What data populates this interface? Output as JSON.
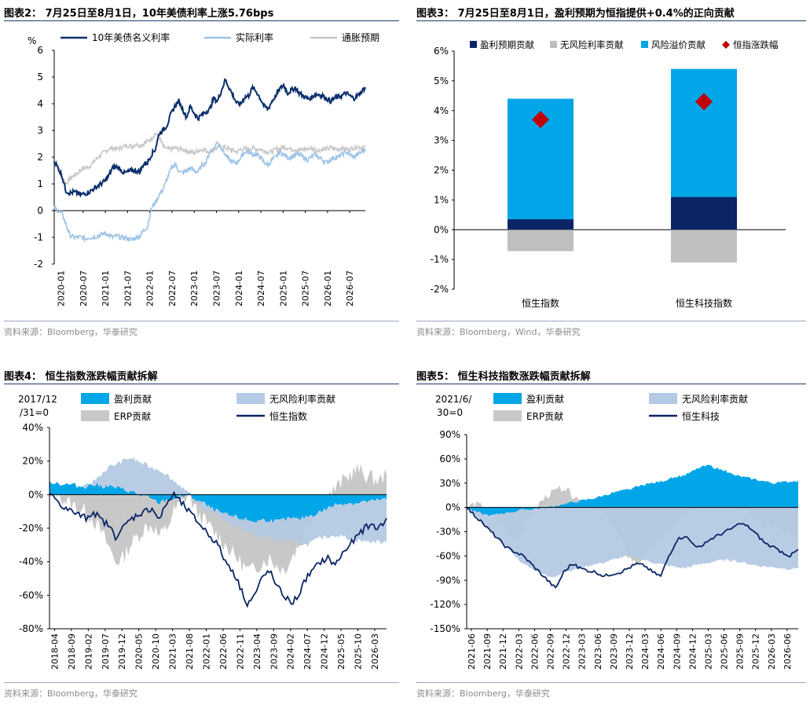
{
  "panels": [
    {
      "id": "p2",
      "title": "图表2： 7月25日至8月1日，10年美债利率上涨5.76bps",
      "source": "资料来源：Bloomberg，华泰研究"
    },
    {
      "id": "p3",
      "title": "图表3： 7月25日至8月1日，盈利预期为恒指提供+0.4%的正向贡献",
      "source": "资料来源：Bloomberg，Wind，华泰研究"
    },
    {
      "id": "p4",
      "title": "图表4： 恒生指数涨跌幅贡献拆解",
      "source": "资料来源：Bloomberg，华泰研究"
    },
    {
      "id": "p5",
      "title": "图表5： 恒生科技指数涨跌幅贡献拆解",
      "source": "资料来源：Bloomberg，华泰研究"
    }
  ],
  "chart_data": [
    {
      "type": "line",
      "ylabel": "%",
      "ylim": [
        -2,
        6
      ],
      "yticks": [
        "-2",
        "-1",
        "0",
        "1",
        "2",
        "3",
        "4",
        "5",
        "6"
      ],
      "xticks": [
        "2020-01",
        "2020-07",
        "2021-01",
        "2021-07",
        "2022-01",
        "2022-07",
        "2023-01",
        "2023-07",
        "2024-01",
        "2024-07",
        "2025-01",
        "2025-07",
        "2026-01",
        "2026-07"
      ],
      "colors": {
        "nominal": "#0b2f6b",
        "real": "#9ec3e6",
        "breakeven": "#c8c8c8"
      },
      "series": [
        {
          "name": "10年美债名义利率",
          "key": "nominal",
          "t": [
            0,
            1,
            2,
            3,
            4,
            5,
            6,
            7,
            8,
            9,
            10,
            11,
            12,
            13,
            14,
            15,
            16,
            17,
            18,
            19,
            20,
            21,
            22,
            23,
            24,
            25,
            26,
            27,
            28,
            29,
            30,
            31,
            32,
            33,
            34,
            35,
            36,
            37,
            38,
            39,
            40,
            41,
            42,
            43,
            44,
            45,
            46,
            47,
            48,
            49,
            50,
            51,
            52,
            53,
            54,
            55,
            56,
            57,
            58,
            59,
            60,
            61,
            62,
            63,
            64,
            65,
            66,
            67,
            68,
            69,
            70,
            71,
            72,
            73,
            74,
            75,
            76,
            77,
            78,
            79,
            80
          ],
          "v": [
            1.85,
            1.6,
            1.3,
            0.75,
            0.65,
            0.7,
            0.65,
            0.6,
            0.65,
            0.7,
            0.8,
            0.9,
            1.0,
            1.1,
            1.3,
            1.6,
            1.65,
            1.55,
            1.4,
            1.45,
            1.5,
            1.5,
            1.45,
            1.75,
            1.8,
            2.1,
            2.3,
            2.9,
            3.0,
            3.2,
            3.6,
            3.9,
            4.1,
            3.8,
            3.5,
            3.9,
            3.65,
            3.45,
            3.6,
            3.7,
            3.8,
            4.2,
            4.1,
            4.5,
            4.9,
            4.6,
            4.3,
            4.0,
            4.0,
            4.25,
            4.3,
            4.6,
            4.45,
            4.2,
            3.9,
            3.8,
            4.1,
            4.3,
            4.55,
            4.7,
            4.4,
            4.5,
            4.6,
            4.4,
            4.3,
            4.2,
            4.2,
            4.35,
            4.35,
            4.3,
            4.2,
            4.1,
            4.2,
            4.25,
            4.3,
            4.4,
            4.3,
            4.2,
            4.3,
            4.45,
            4.62
          ]
        },
        {
          "name": "实际利率",
          "key": "real",
          "t": [
            0,
            1,
            2,
            3,
            4,
            5,
            6,
            7,
            8,
            9,
            10,
            11,
            12,
            13,
            14,
            15,
            16,
            17,
            18,
            19,
            20,
            21,
            22,
            23,
            24,
            25,
            26,
            27,
            28,
            29,
            30,
            31,
            32,
            33,
            34,
            35,
            36,
            37,
            38,
            39,
            40,
            41,
            42,
            43,
            44,
            45,
            46,
            47,
            48,
            49,
            50,
            51,
            52,
            53,
            54,
            55,
            56,
            57,
            58,
            59,
            60,
            61,
            62,
            63,
            64,
            65,
            66,
            67,
            68,
            69,
            70,
            71,
            72,
            73,
            74,
            75,
            76,
            77,
            78,
            79,
            80
          ],
          "v": [
            0.1,
            0.0,
            -0.1,
            -0.5,
            -0.9,
            -1.0,
            -1.0,
            -1.0,
            -1.05,
            -1.0,
            -1.0,
            -0.95,
            -0.9,
            -0.85,
            -0.9,
            -1.0,
            -0.95,
            -1.0,
            -1.0,
            -1.05,
            -1.1,
            -1.0,
            -0.95,
            -0.75,
            -0.6,
            0.1,
            0.3,
            0.6,
            0.8,
            1.2,
            1.55,
            1.75,
            1.5,
            1.4,
            1.5,
            1.6,
            1.5,
            1.45,
            1.7,
            1.8,
            2.2,
            2.3,
            2.6,
            2.35,
            2.1,
            1.9,
            1.8,
            1.8,
            2.0,
            2.2,
            2.2,
            2.1,
            2.1,
            2.0,
            1.8,
            1.7,
            1.9,
            2.0,
            2.2,
            2.1,
            2.0,
            2.0,
            2.1,
            2.1,
            2.0,
            1.9,
            2.0,
            2.1,
            2.0,
            1.9,
            1.8,
            1.9,
            2.0,
            2.0,
            2.1,
            2.2,
            2.1,
            2.0,
            2.1,
            2.2,
            2.3
          ]
        },
        {
          "name": "通胀预期",
          "key": "breakeven",
          "t": [
            0,
            1,
            2,
            3,
            4,
            5,
            6,
            7,
            8,
            9,
            10,
            11,
            12,
            13,
            14,
            15,
            16,
            17,
            18,
            19,
            20,
            21,
            22,
            23,
            24,
            25,
            26,
            27,
            28,
            29,
            30,
            31,
            32,
            33,
            34,
            35,
            36,
            37,
            38,
            39,
            40,
            41,
            42,
            43,
            44,
            45,
            46,
            47,
            48,
            49,
            50,
            51,
            52,
            53,
            54,
            55,
            56,
            57,
            58,
            59,
            60,
            61,
            62,
            63,
            64,
            65,
            66,
            67,
            68,
            69,
            70,
            71,
            72,
            73,
            74,
            75,
            76,
            77,
            78,
            79,
            80
          ],
          "v": [
            1.75,
            1.6,
            1.3,
            1.0,
            1.2,
            1.3,
            1.4,
            1.55,
            1.6,
            1.65,
            1.8,
            1.95,
            2.1,
            2.2,
            2.3,
            2.35,
            2.3,
            2.35,
            2.4,
            2.45,
            2.4,
            2.5,
            2.45,
            2.5,
            2.6,
            2.7,
            2.9,
            2.75,
            2.4,
            2.3,
            2.3,
            2.35,
            2.3,
            2.3,
            2.25,
            2.2,
            2.15,
            2.25,
            2.3,
            2.25,
            2.2,
            2.3,
            2.35,
            2.4,
            2.35,
            2.3,
            2.25,
            2.2,
            2.3,
            2.3,
            2.3,
            2.35,
            2.3,
            2.3,
            2.25,
            2.2,
            2.2,
            2.3,
            2.3,
            2.4,
            2.35,
            2.3,
            2.3,
            2.25,
            2.3,
            2.3,
            2.35,
            2.3,
            2.25,
            2.3,
            2.3,
            2.35,
            2.3,
            2.3,
            2.35,
            2.3,
            2.3,
            2.35,
            2.4,
            2.35,
            2.4
          ]
        }
      ]
    },
    {
      "type": "bar",
      "ylim": [
        -2,
        6
      ],
      "yticks": [
        "-2%",
        "-1%",
        "0%",
        "1%",
        "2%",
        "3%",
        "4%",
        "5%",
        "6%"
      ],
      "categories": [
        "恒生指数",
        "恒生科技指数"
      ],
      "series": [
        {
          "name": "盈利预期贡献",
          "color": "#0b2566",
          "values": [
            0.35,
            1.1
          ]
        },
        {
          "name": "无风险利率贡献",
          "color": "#bfbfbf",
          "values": [
            -0.72,
            -1.1
          ]
        },
        {
          "name": "风险溢价贡献",
          "color": "#00a6e8",
          "values": [
            4.05,
            4.3
          ]
        },
        {
          "name": "恒指涨跌幅",
          "color": "#c00000",
          "values": [
            3.7,
            4.3
          ]
        }
      ]
    },
    {
      "type": "area",
      "corner_label_1": "2017/12",
      "corner_label_2": "/31=0",
      "ylim": [
        -80,
        40
      ],
      "yticks": [
        "-80%",
        "-60%",
        "-40%",
        "-20%",
        "0%",
        "20%",
        "40%"
      ],
      "xticks": [
        "2018-04",
        "2018-09",
        "2019-02",
        "2019-07",
        "2019-12",
        "2020-05",
        "2020-10",
        "2021-03",
        "2021-08",
        "2022-01",
        "2022-06",
        "2022-11",
        "2023-04",
        "2023-09",
        "2024-02",
        "2024-07",
        "2024-12",
        "2025-05",
        "2025-10",
        "2026-03"
      ],
      "series": [
        {
          "name": "盈利贡献",
          "key": "earn",
          "color": "#00a6e8",
          "v": [
            8,
            7,
            6,
            6,
            5,
            5,
            6,
            5,
            5,
            4,
            3,
            2,
            0,
            -1,
            -3,
            -5,
            -3,
            -2,
            -1,
            0,
            -3,
            -5,
            -8,
            -10,
            -12,
            -13,
            -14,
            -15,
            -16,
            -15,
            -15,
            -16,
            -15,
            -14,
            -15,
            -13,
            -12,
            -10,
            -8,
            -6,
            -5,
            -5,
            -5,
            -4,
            -4,
            -3,
            -3
          ]
        },
        {
          "name": "无风险利率贡献",
          "key": "rf",
          "color": "#b4c9e3",
          "v": [
            0,
            0,
            1,
            2,
            3,
            5,
            8,
            12,
            16,
            18,
            20,
            22,
            20,
            18,
            16,
            15,
            12,
            8,
            5,
            0,
            -5,
            -8,
            -10,
            -12,
            -15,
            -18,
            -20,
            -22,
            -24,
            -25,
            -26,
            -27,
            -28,
            -28,
            -29,
            -30,
            -28,
            -26,
            -25,
            -24,
            -25,
            -26,
            -27,
            -28,
            -28,
            -28,
            -29
          ]
        },
        {
          "name": "ERP贡献",
          "key": "erp",
          "color": "#c8c8c8",
          "v": [
            0,
            2,
            -3,
            -6,
            -8,
            -10,
            -15,
            -22,
            -30,
            -40,
            -38,
            -30,
            -25,
            -20,
            -18,
            -25,
            -20,
            -10,
            -5,
            0,
            -10,
            -15,
            -20,
            -25,
            -30,
            -35,
            -40,
            -45,
            -45,
            -40,
            -38,
            -42,
            -45,
            -38,
            -30,
            -20,
            -10,
            -5,
            0,
            3,
            8,
            12,
            15,
            12,
            10,
            8,
            12
          ]
        },
        {
          "name": "恒生指数",
          "key": "idx",
          "color": "#0b2566",
          "v": [
            0,
            -3,
            -8,
            -10,
            -12,
            -14,
            -10,
            -15,
            -18,
            -25,
            -20,
            -15,
            -12,
            -10,
            -8,
            -15,
            -5,
            0,
            -5,
            -10,
            -15,
            -20,
            -25,
            -30,
            -40,
            -45,
            -55,
            -65,
            -60,
            -50,
            -45,
            -55,
            -60,
            -65,
            -60,
            -50,
            -45,
            -40,
            -38,
            -42,
            -35,
            -30,
            -25,
            -20,
            -18,
            -20,
            -14
          ]
        }
      ]
    },
    {
      "type": "area",
      "corner_label_1": "2021/6/",
      "corner_label_2": "30=0",
      "ylim": [
        -150,
        90
      ],
      "yticks": [
        "-150%",
        "-120%",
        "-90%",
        "-60%",
        "-30%",
        "0%",
        "30%",
        "60%",
        "90%"
      ],
      "xticks": [
        "2021-06",
        "2021-09",
        "2021-12",
        "2022-03",
        "2022-06",
        "2022-09",
        "2022-12",
        "2023-03",
        "2023-06",
        "2023-09",
        "2023-12",
        "2024-03",
        "2024-06",
        "2024-09",
        "2024-12",
        "2025-03",
        "2025-06",
        "2025-09",
        "2025-12",
        "2026-03",
        "2026-06"
      ],
      "series": [
        {
          "name": "盈利贡献",
          "key": "earn",
          "color": "#00a6e8",
          "v": [
            0,
            -5,
            -8,
            -10,
            -8,
            -6,
            -5,
            -3,
            -2,
            -1,
            0,
            2,
            4,
            6,
            8,
            10,
            12,
            15,
            18,
            20,
            22,
            25,
            28,
            30,
            32,
            35,
            38,
            40,
            45,
            50,
            52,
            48,
            45,
            40,
            38,
            36,
            34,
            32,
            30,
            31,
            32,
            33
          ]
        },
        {
          "name": "无风险利率贡献",
          "key": "rf",
          "color": "#b4c9e3",
          "v": [
            0,
            -10,
            -20,
            -30,
            -40,
            -50,
            -60,
            -70,
            -75,
            -80,
            -85,
            -85,
            -80,
            -78,
            -75,
            -72,
            -70,
            -68,
            -65,
            -62,
            -60,
            -62,
            -65,
            -68,
            -70,
            -72,
            -74,
            -75,
            -72,
            -70,
            -68,
            -66,
            -65,
            -66,
            -68,
            -70,
            -72,
            -73,
            -74,
            -75,
            -76,
            -75
          ]
        },
        {
          "name": "ERP贡献",
          "key": "erp",
          "color": "#c8c8c8",
          "v": [
            0,
            5,
            0,
            -10,
            -20,
            -30,
            -40,
            -30,
            -10,
            5,
            15,
            20,
            25,
            15,
            10,
            5,
            0,
            -10,
            -20,
            -40,
            -60,
            -70,
            -60,
            -50,
            -40,
            -30,
            -20,
            -10,
            0,
            10,
            15,
            20,
            10,
            5,
            0,
            -10,
            -15,
            -20,
            -25,
            -30,
            -35,
            -40
          ]
        },
        {
          "name": "恒生科技",
          "key": "idx",
          "color": "#0b2566",
          "v": [
            0,
            -10,
            -20,
            -30,
            -40,
            -50,
            -55,
            -60,
            -70,
            -80,
            -90,
            -100,
            -80,
            -70,
            -75,
            -78,
            -80,
            -85,
            -82,
            -80,
            -75,
            -70,
            -72,
            -80,
            -85,
            -60,
            -40,
            -35,
            -45,
            -50,
            -40,
            -35,
            -30,
            -25,
            -20,
            -25,
            -35,
            -45,
            -50,
            -55,
            -60,
            -52
          ]
        }
      ]
    }
  ]
}
